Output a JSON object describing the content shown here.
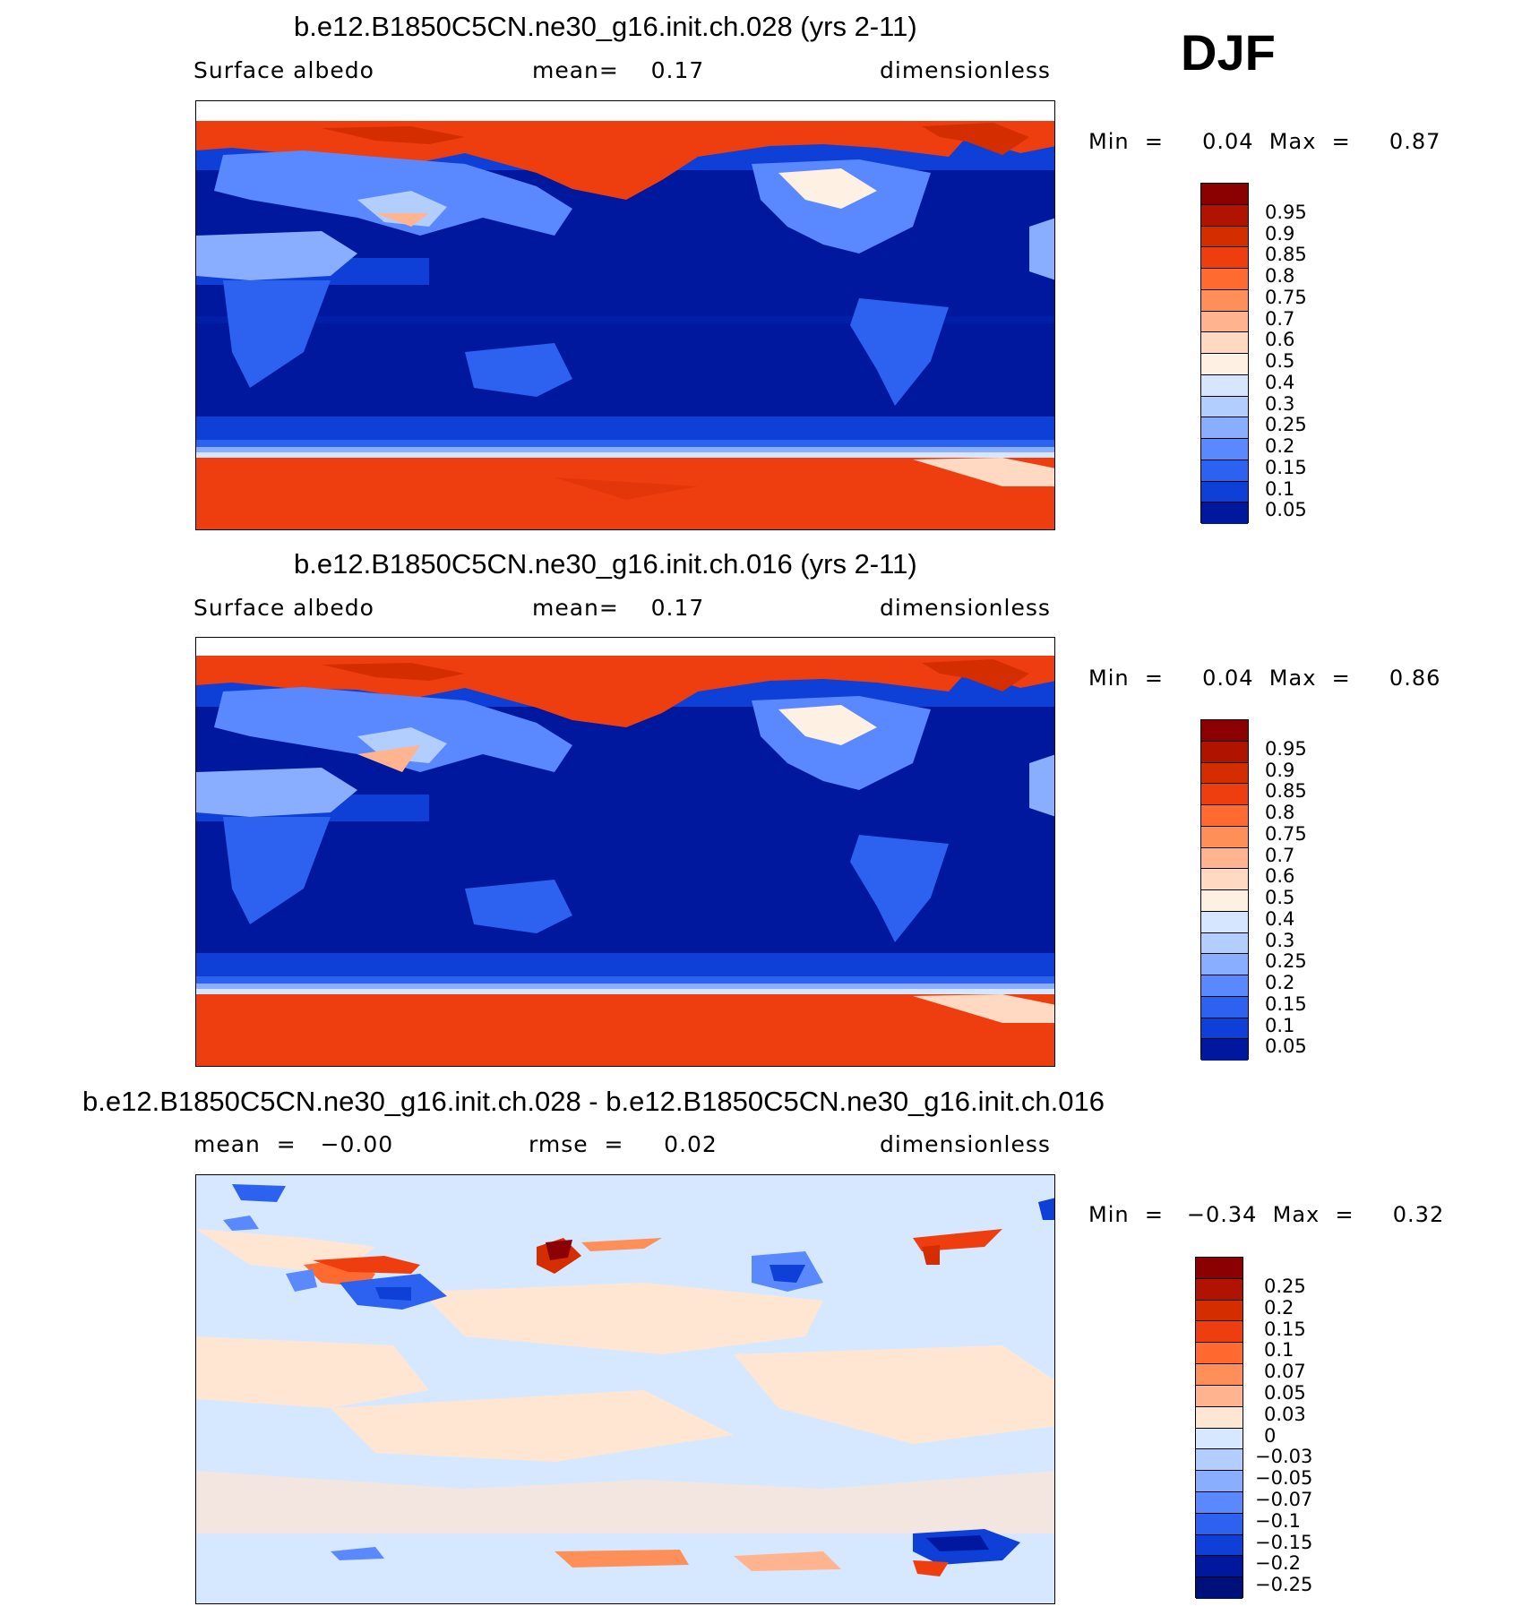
{
  "season": "DJF",
  "panels": [
    {
      "title": "b.e12.B1850C5CN.ne30_g16.init.ch.028 (yrs 2-11)",
      "left": "Surface  albedo",
      "center": "mean=    0.17",
      "right": "dimensionless",
      "minmax": "Min  =     0.04  Max  =     0.87"
    },
    {
      "title": "b.e12.B1850C5CN.ne30_g16.init.ch.016 (yrs 2-11)",
      "left": "Surface  albedo",
      "center": "mean=    0.17",
      "right": "dimensionless",
      "minmax": "Min  =     0.04  Max  =     0.86"
    },
    {
      "title": "b.e12.B1850C5CN.ne30_g16.init.ch.028 - b.e12.B1850C5CN.ne30_g16.init.ch.016",
      "left": "mean  =   −0.00",
      "center": "rmse  =     0.02",
      "right": "dimensionless",
      "minmax": "Min  =   −0.34  Max  =     0.32"
    }
  ],
  "colorbars": {
    "albedo": {
      "labels": [
        "0.95",
        "0.9",
        "0.85",
        "0.8",
        "0.75",
        "0.7",
        "0.6",
        "0.5",
        "0.4",
        "0.3",
        "0.25",
        "0.2",
        "0.15",
        "0.1",
        "0.05"
      ],
      "colors": [
        "#8b0000",
        "#b01400",
        "#d42d00",
        "#ee3e10",
        "#ff6a30",
        "#ff8f58",
        "#ffb38f",
        "#ffd9c2",
        "#fff0e4",
        "#d6e6ff",
        "#b2ceff",
        "#8aaeff",
        "#5a88ff",
        "#2d62f0",
        "#0e3fd6",
        "#00189e"
      ]
    },
    "diff": {
      "labels": [
        "0.25",
        "0.2",
        "0.15",
        "0.1",
        "0.07",
        "0.05",
        "0.03",
        "0",
        "−0.03",
        "−0.05",
        "−0.07",
        "−0.1",
        "−0.15",
        "−0.2",
        "−0.25"
      ],
      "colors": [
        "#8b0000",
        "#b01400",
        "#d42d00",
        "#ee3e10",
        "#ff6a30",
        "#ff8f58",
        "#ffb38f",
        "#ffe6d3",
        "#d6e8ff",
        "#b2ceff",
        "#8aaeff",
        "#5a88ff",
        "#2d62f0",
        "#0e3fd6",
        "#00189e",
        "#00107a"
      ]
    }
  }
}
